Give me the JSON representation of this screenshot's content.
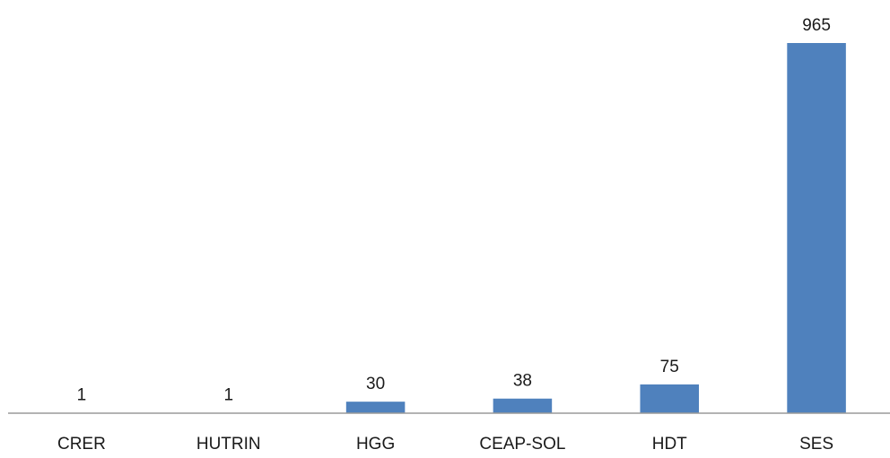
{
  "chart_data": {
    "type": "bar",
    "title": "",
    "xlabel": "",
    "ylabel": "",
    "categories": [
      "CRER",
      "HUTRIN",
      "HGG",
      "CEAP-SOL",
      "HDT",
      "SES"
    ],
    "values": [
      1,
      1,
      30,
      38,
      75,
      965
    ],
    "data_labels": [
      "1",
      "1",
      "30",
      "38",
      "75",
      "965"
    ],
    "ylim": [
      0,
      965
    ],
    "grid": false,
    "legend": "none",
    "colors": {
      "bar": "#4f81bd",
      "axis": "#9a9a9a",
      "text": "#1a1a1a"
    }
  }
}
